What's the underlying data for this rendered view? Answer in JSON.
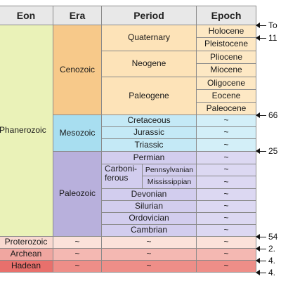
{
  "headers": {
    "eon": "Eon",
    "era": "Era",
    "period": "Period",
    "epoch": "Epoch"
  },
  "eons": {
    "phanerozoic": "Phanerozoic",
    "proterozoic": "Proterozoic",
    "archean": "Archean",
    "hadean": "Hadean"
  },
  "eras": {
    "cenozoic": "Cenozoic",
    "mesozoic": "Mesozoic",
    "paleozoic": "Paleozoic"
  },
  "periods": {
    "quaternary": "Quaternary",
    "neogene": "Neogene",
    "paleogene": "Paleogene",
    "cretaceous": "Cretaceous",
    "jurassic": "Jurassic",
    "triassic": "Triassic",
    "permian": "Permian",
    "carboniferous_line1": "Carboni-",
    "carboniferous_line2": "ferous",
    "pennsylvanian": "Pennsylvanian",
    "mississippian": "Mississippian",
    "devonian": "Devonian",
    "silurian": "Silurian",
    "ordovician": "Ordovician",
    "cambrian": "Cambrian"
  },
  "epochs": {
    "holocene": "Holocene",
    "pleistocene": "Pleistocene",
    "pliocene": "Pliocene",
    "miocene": "Miocene",
    "oligocene": "Oligocene",
    "eocene": "Eocene",
    "paleocene": "Paleocene"
  },
  "placeholder": "~",
  "markers": [
    "To",
    "11",
    "66",
    "25",
    "54",
    "2.",
    "4.",
    "4."
  ],
  "colors": {
    "header_bg": "#e8e8e8",
    "phanerozoic": "#eaf2b8",
    "cenozoic": "#f7c98a",
    "mesozoic": "#a8def0",
    "paleozoic": "#b8b0dc",
    "proterozoic": "#f9d9d0",
    "archean": "#f0a6a0",
    "hadean": "#e8706c"
  }
}
